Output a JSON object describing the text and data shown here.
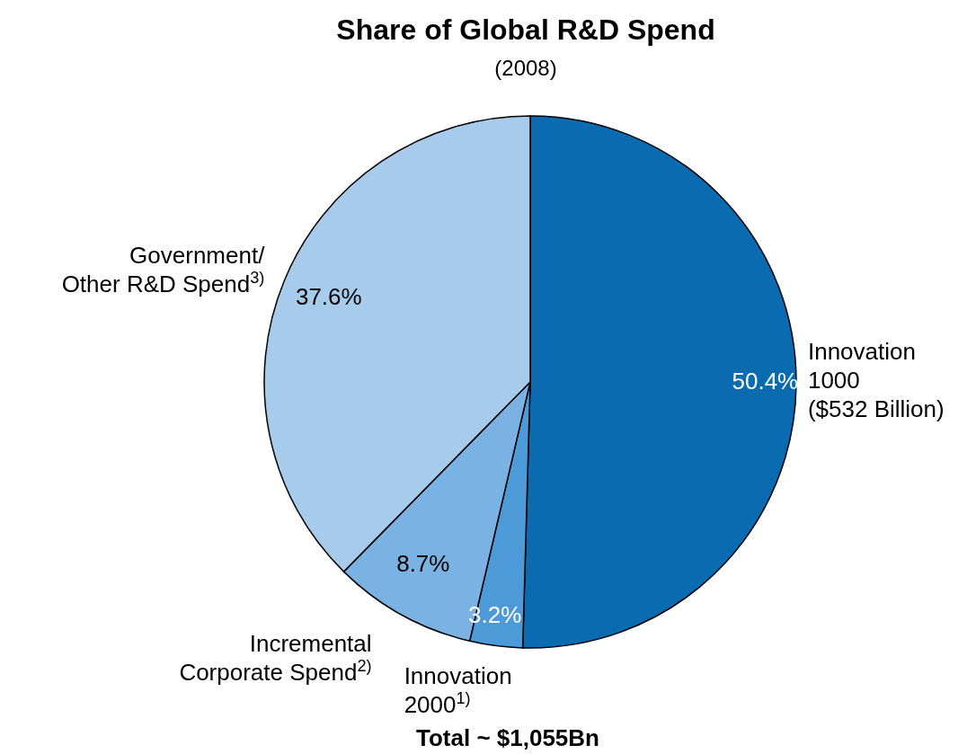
{
  "chart_data": {
    "type": "pie",
    "title": "Share of Global R&D Spend",
    "subtitle": "(2008)",
    "categories": [
      "Innovation\n1000\n($532 Billion)",
      "Innovation\n2000$^{1)}$",
      "Incremental\nCorporate Spend$^{2)}$",
      "Government/\nOther R&D Spend$^{3)}$"
    ],
    "values": [
      50.4,
      3.2,
      8.7,
      37.6
    ],
    "colors": [
      "#0a6bb0",
      "#4d9ad9",
      "#7ab3e3",
      "#a7cbeb"
    ],
    "value_labels": [
      "50.4%",
      "3.2%",
      "8.7%",
      "37.6%"
    ],
    "annotations": [
      "Total ~ $1,055Bn"
    ],
    "legend": false
  }
}
